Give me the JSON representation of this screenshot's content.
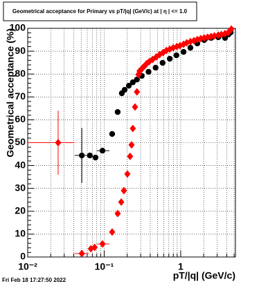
{
  "chart_data": {
    "type": "scatter",
    "title": "Geometrical acceptance for Primary vs pT/|q| (GeV/c) at |  η  | <= 1.0",
    "x_label": "pT/|q| (GeV/c)",
    "y_label": "Geometrical acceptance (%)",
    "footer": "Fri Feb 18 17:27:50 2022",
    "xlog": true,
    "grid": true,
    "xlim": [
      0.01,
      5.2
    ],
    "ylim": [
      0,
      100
    ],
    "xticks": [
      {
        "value": 0.01,
        "label": "10⁻²"
      },
      {
        "value": 0.1,
        "label": "10⁻¹"
      },
      1
    ],
    "xminor_ticks": [
      0.02,
      0.03,
      0.04,
      0.05,
      0.06,
      0.07,
      0.08,
      0.09,
      0.2,
      0.3,
      0.4,
      0.5,
      0.6,
      0.7,
      0.8,
      0.9,
      2,
      3,
      4,
      5
    ],
    "yticks": [
      0,
      10,
      20,
      30,
      40,
      50,
      60,
      70,
      80,
      90,
      100
    ],
    "series": [
      {
        "color": "#000000",
        "marker": "circle",
        "x": [
          0.051,
          0.065,
          0.077,
          0.095,
          0.127,
          0.15,
          0.17,
          0.185,
          0.21,
          0.237,
          0.268,
          0.31,
          0.38,
          0.47,
          0.58,
          0.72,
          0.88,
          1.09,
          1.34,
          1.65,
          2.03,
          2.5,
          3.1,
          3.8,
          4.2,
          4.5
        ],
        "values": [
          44.4,
          44.4,
          43.5,
          46.5,
          53.8,
          63.4,
          71.6,
          73.1,
          74.9,
          76.4,
          77.6,
          79.2,
          81.0,
          82.8,
          84.9,
          86.7,
          88.2,
          89.7,
          91.5,
          93.4,
          94.9,
          95.8,
          96.1,
          95.8,
          97.3,
          98.2
        ],
        "yerr": [
          12,
          0,
          0,
          0,
          0,
          0,
          0,
          0,
          0,
          0,
          0,
          0,
          0,
          0,
          0,
          0,
          0,
          0,
          0,
          0,
          0,
          0,
          0,
          0,
          0,
          0
        ],
        "xerr": [
          [
            0.01,
            0.012
          ],
          [
            0,
            0
          ],
          [
            0,
            0
          ],
          [
            0.015,
            0.022
          ],
          [
            0,
            0
          ],
          [
            0,
            0
          ],
          [
            0,
            0
          ],
          [
            0,
            0
          ],
          [
            0,
            0
          ],
          [
            0,
            0
          ],
          [
            0,
            0
          ],
          [
            0,
            0
          ],
          [
            0,
            0
          ],
          [
            0,
            0
          ],
          [
            0,
            0
          ],
          [
            0,
            0
          ],
          [
            0,
            0
          ],
          [
            0,
            0
          ],
          [
            0,
            0
          ],
          [
            0,
            0
          ],
          [
            0,
            0
          ],
          [
            0,
            0
          ],
          [
            0,
            0
          ],
          [
            0,
            0
          ],
          [
            0,
            0
          ],
          [
            0,
            0
          ]
        ]
      },
      {
        "color": "#ff0000",
        "marker": "diamond",
        "x": [
          0.025,
          0.051,
          0.067,
          0.075,
          0.095,
          0.127,
          0.15,
          0.167,
          0.181,
          0.201,
          0.218,
          0.228,
          0.237,
          0.253,
          0.268,
          0.28,
          0.29,
          0.31,
          0.32,
          0.34,
          0.36,
          0.39,
          0.43,
          0.48,
          0.53,
          0.59,
          0.65,
          0.72,
          0.8,
          0.89,
          0.98,
          1.09,
          1.2,
          1.34,
          1.49,
          1.65,
          1.83,
          2.03,
          2.25,
          2.5,
          2.76,
          3.1,
          3.4,
          3.8,
          4.2,
          4.6
        ],
        "values": [
          50,
          1.5,
          3.6,
          4.2,
          5.7,
          10.9,
          19,
          24,
          29,
          36.3,
          44,
          49,
          56.2,
          65.6,
          72.2,
          79.8,
          81.3,
          82.2,
          82.8,
          83.7,
          84.6,
          85.5,
          86.4,
          87.5,
          88.5,
          89.4,
          90.3,
          90.9,
          91.5,
          92.0,
          92.4,
          93.0,
          93.7,
          94.2,
          94.6,
          95.1,
          95.5,
          95.8,
          96.1,
          96.4,
          96.7,
          97.0,
          97.3,
          97.7,
          98.2,
          99.7
        ],
        "yerr": [
          14,
          0,
          0,
          0,
          0,
          0,
          0,
          0,
          0,
          0,
          0,
          0,
          0,
          0,
          0,
          0,
          0,
          0,
          0,
          0,
          0,
          0,
          0,
          0,
          0,
          0,
          0,
          0,
          0,
          0,
          0,
          0,
          0,
          0,
          0,
          0,
          0,
          0,
          0,
          0,
          0,
          0,
          0,
          0,
          0,
          0
        ],
        "xerr": [
          [
            0.015,
            0.016
          ],
          [
            0.01,
            0.012
          ],
          [
            0,
            0
          ],
          [
            0,
            0
          ],
          [
            0.015,
            0.022
          ],
          [
            0,
            0
          ],
          [
            0,
            0
          ],
          [
            0,
            0
          ],
          [
            0,
            0
          ],
          [
            0,
            0
          ],
          [
            0,
            0
          ],
          [
            0,
            0
          ],
          [
            0,
            0
          ],
          [
            0,
            0
          ],
          [
            0,
            0
          ],
          [
            0,
            0
          ],
          [
            0,
            0
          ],
          [
            0,
            0
          ],
          [
            0,
            0
          ],
          [
            0,
            0
          ],
          [
            0,
            0
          ],
          [
            0,
            0
          ],
          [
            0,
            0
          ],
          [
            0,
            0
          ],
          [
            0,
            0
          ],
          [
            0,
            0
          ],
          [
            0,
            0
          ],
          [
            0,
            0
          ],
          [
            0,
            0
          ],
          [
            0,
            0
          ],
          [
            0,
            0
          ],
          [
            0,
            0
          ],
          [
            0,
            0
          ],
          [
            0,
            0
          ],
          [
            0,
            0
          ],
          [
            0,
            0
          ],
          [
            0,
            0
          ],
          [
            0,
            0
          ],
          [
            0,
            0
          ],
          [
            0,
            0
          ],
          [
            0,
            0
          ],
          [
            0,
            0
          ],
          [
            0,
            0
          ],
          [
            0,
            0
          ],
          [
            0,
            0
          ],
          [
            0,
            0
          ]
        ]
      }
    ]
  }
}
